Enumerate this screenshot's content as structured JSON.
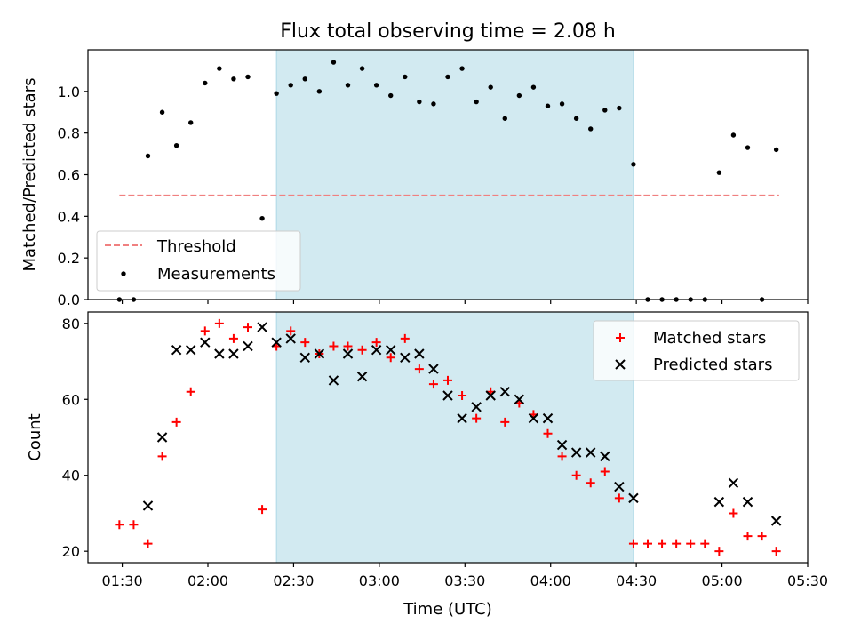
{
  "title": "Flux total observing time = 2.08 h",
  "xlabel": "Time (UTC)",
  "x_ticks": [
    "01:30",
    "02:00",
    "02:30",
    "03:00",
    "03:30",
    "04:00",
    "04:30",
    "05:00",
    "05:30"
  ],
  "chart_data": [
    {
      "type": "scatter",
      "panel": "top",
      "ylabel": "Matched/Predicted stars",
      "ylim": [
        0,
        1.2
      ],
      "y_ticks": [
        "0.0",
        "0.2",
        "0.4",
        "0.6",
        "0.8",
        "1.0"
      ],
      "x_range": [
        "01:18",
        "05:30"
      ],
      "shaded_interval": [
        "02:24",
        "04:29"
      ],
      "shade_color": "#add8e6",
      "legend_position": "lower-left",
      "threshold": {
        "name": "Threshold",
        "value": 0.5,
        "x": [
          "01:29",
          "05:20"
        ],
        "color": "#f08080",
        "style": "dashed"
      },
      "series": [
        {
          "name": "Measurements",
          "marker": "dot",
          "color": "#000000",
          "points": [
            [
              "01:29",
              0.0
            ],
            [
              "01:34",
              0.0
            ],
            [
              "01:39",
              0.69
            ],
            [
              "01:44",
              0.9
            ],
            [
              "01:49",
              0.74
            ],
            [
              "01:54",
              0.85
            ],
            [
              "01:59",
              1.04
            ],
            [
              "02:04",
              1.11
            ],
            [
              "02:09",
              1.06
            ],
            [
              "02:14",
              1.07
            ],
            [
              "02:19",
              0.39
            ],
            [
              "02:24",
              0.99
            ],
            [
              "02:29",
              1.03
            ],
            [
              "02:34",
              1.06
            ],
            [
              "02:39",
              1.0
            ],
            [
              "02:44",
              1.14
            ],
            [
              "02:49",
              1.03
            ],
            [
              "02:54",
              1.11
            ],
            [
              "02:59",
              1.03
            ],
            [
              "03:04",
              0.98
            ],
            [
              "03:09",
              1.07
            ],
            [
              "03:14",
              0.95
            ],
            [
              "03:19",
              0.94
            ],
            [
              "03:24",
              1.07
            ],
            [
              "03:29",
              1.11
            ],
            [
              "03:34",
              0.95
            ],
            [
              "03:39",
              1.02
            ],
            [
              "03:44",
              0.87
            ],
            [
              "03:49",
              0.98
            ],
            [
              "03:54",
              1.02
            ],
            [
              "03:59",
              0.93
            ],
            [
              "04:04",
              0.94
            ],
            [
              "04:09",
              0.87
            ],
            [
              "04:14",
              0.82
            ],
            [
              "04:19",
              0.91
            ],
            [
              "04:24",
              0.92
            ],
            [
              "04:29",
              0.65
            ],
            [
              "04:34",
              0.0
            ],
            [
              "04:39",
              0.0
            ],
            [
              "04:44",
              0.0
            ],
            [
              "04:49",
              0.0
            ],
            [
              "04:54",
              0.0
            ],
            [
              "04:59",
              0.61
            ],
            [
              "05:04",
              0.79
            ],
            [
              "05:09",
              0.73
            ],
            [
              "05:14",
              0.0
            ],
            [
              "05:19",
              0.72
            ]
          ]
        }
      ]
    },
    {
      "type": "scatter",
      "panel": "bottom",
      "ylabel": "Count",
      "ylim": [
        17,
        83
      ],
      "y_ticks": [
        "20",
        "40",
        "60",
        "80"
      ],
      "x_range": [
        "01:18",
        "05:30"
      ],
      "shaded_interval": [
        "02:24",
        "04:29"
      ],
      "shade_color": "#add8e6",
      "legend_position": "upper-right",
      "series": [
        {
          "name": "Matched stars",
          "marker": "plus",
          "color": "#ff0000",
          "points": [
            [
              "01:29",
              27
            ],
            [
              "01:34",
              27
            ],
            [
              "01:39",
              22
            ],
            [
              "01:44",
              45
            ],
            [
              "01:49",
              54
            ],
            [
              "01:54",
              62
            ],
            [
              "01:59",
              78
            ],
            [
              "02:04",
              80
            ],
            [
              "02:09",
              76
            ],
            [
              "02:14",
              79
            ],
            [
              "02:19",
              31
            ],
            [
              "02:24",
              74
            ],
            [
              "02:29",
              78
            ],
            [
              "02:34",
              75
            ],
            [
              "02:39",
              72
            ],
            [
              "02:44",
              74
            ],
            [
              "02:49",
              74
            ],
            [
              "02:54",
              73
            ],
            [
              "02:59",
              75
            ],
            [
              "03:04",
              71
            ],
            [
              "03:09",
              76
            ],
            [
              "03:14",
              68
            ],
            [
              "03:19",
              64
            ],
            [
              "03:24",
              65
            ],
            [
              "03:29",
              61
            ],
            [
              "03:34",
              55
            ],
            [
              "03:39",
              62
            ],
            [
              "03:44",
              54
            ],
            [
              "03:49",
              59
            ],
            [
              "03:54",
              56
            ],
            [
              "03:59",
              51
            ],
            [
              "04:04",
              45
            ],
            [
              "04:09",
              40
            ],
            [
              "04:14",
              38
            ],
            [
              "04:19",
              41
            ],
            [
              "04:24",
              34
            ],
            [
              "04:29",
              22
            ],
            [
              "04:34",
              22
            ],
            [
              "04:39",
              22
            ],
            [
              "04:44",
              22
            ],
            [
              "04:49",
              22
            ],
            [
              "04:54",
              22
            ],
            [
              "04:59",
              20
            ],
            [
              "05:04",
              30
            ],
            [
              "05:09",
              24
            ],
            [
              "05:14",
              24
            ],
            [
              "05:19",
              20
            ]
          ]
        },
        {
          "name": "Predicted stars",
          "marker": "x",
          "color": "#000000",
          "points": [
            [
              "01:39",
              32
            ],
            [
              "01:44",
              50
            ],
            [
              "01:49",
              73
            ],
            [
              "01:54",
              73
            ],
            [
              "01:59",
              75
            ],
            [
              "02:04",
              72
            ],
            [
              "02:09",
              72
            ],
            [
              "02:14",
              74
            ],
            [
              "02:19",
              79
            ],
            [
              "02:24",
              75
            ],
            [
              "02:29",
              76
            ],
            [
              "02:34",
              71
            ],
            [
              "02:39",
              72
            ],
            [
              "02:44",
              65
            ],
            [
              "02:49",
              72
            ],
            [
              "02:54",
              66
            ],
            [
              "02:59",
              73
            ],
            [
              "03:04",
              73
            ],
            [
              "03:09",
              71
            ],
            [
              "03:14",
              72
            ],
            [
              "03:19",
              68
            ],
            [
              "03:24",
              61
            ],
            [
              "03:29",
              55
            ],
            [
              "03:34",
              58
            ],
            [
              "03:39",
              61
            ],
            [
              "03:44",
              62
            ],
            [
              "03:49",
              60
            ],
            [
              "03:54",
              55
            ],
            [
              "03:59",
              55
            ],
            [
              "04:04",
              48
            ],
            [
              "04:09",
              46
            ],
            [
              "04:14",
              46
            ],
            [
              "04:19",
              45
            ],
            [
              "04:24",
              37
            ],
            [
              "04:29",
              34
            ],
            [
              "04:59",
              33
            ],
            [
              "05:04",
              38
            ],
            [
              "05:09",
              33
            ],
            [
              "05:19",
              28
            ]
          ]
        }
      ]
    }
  ]
}
